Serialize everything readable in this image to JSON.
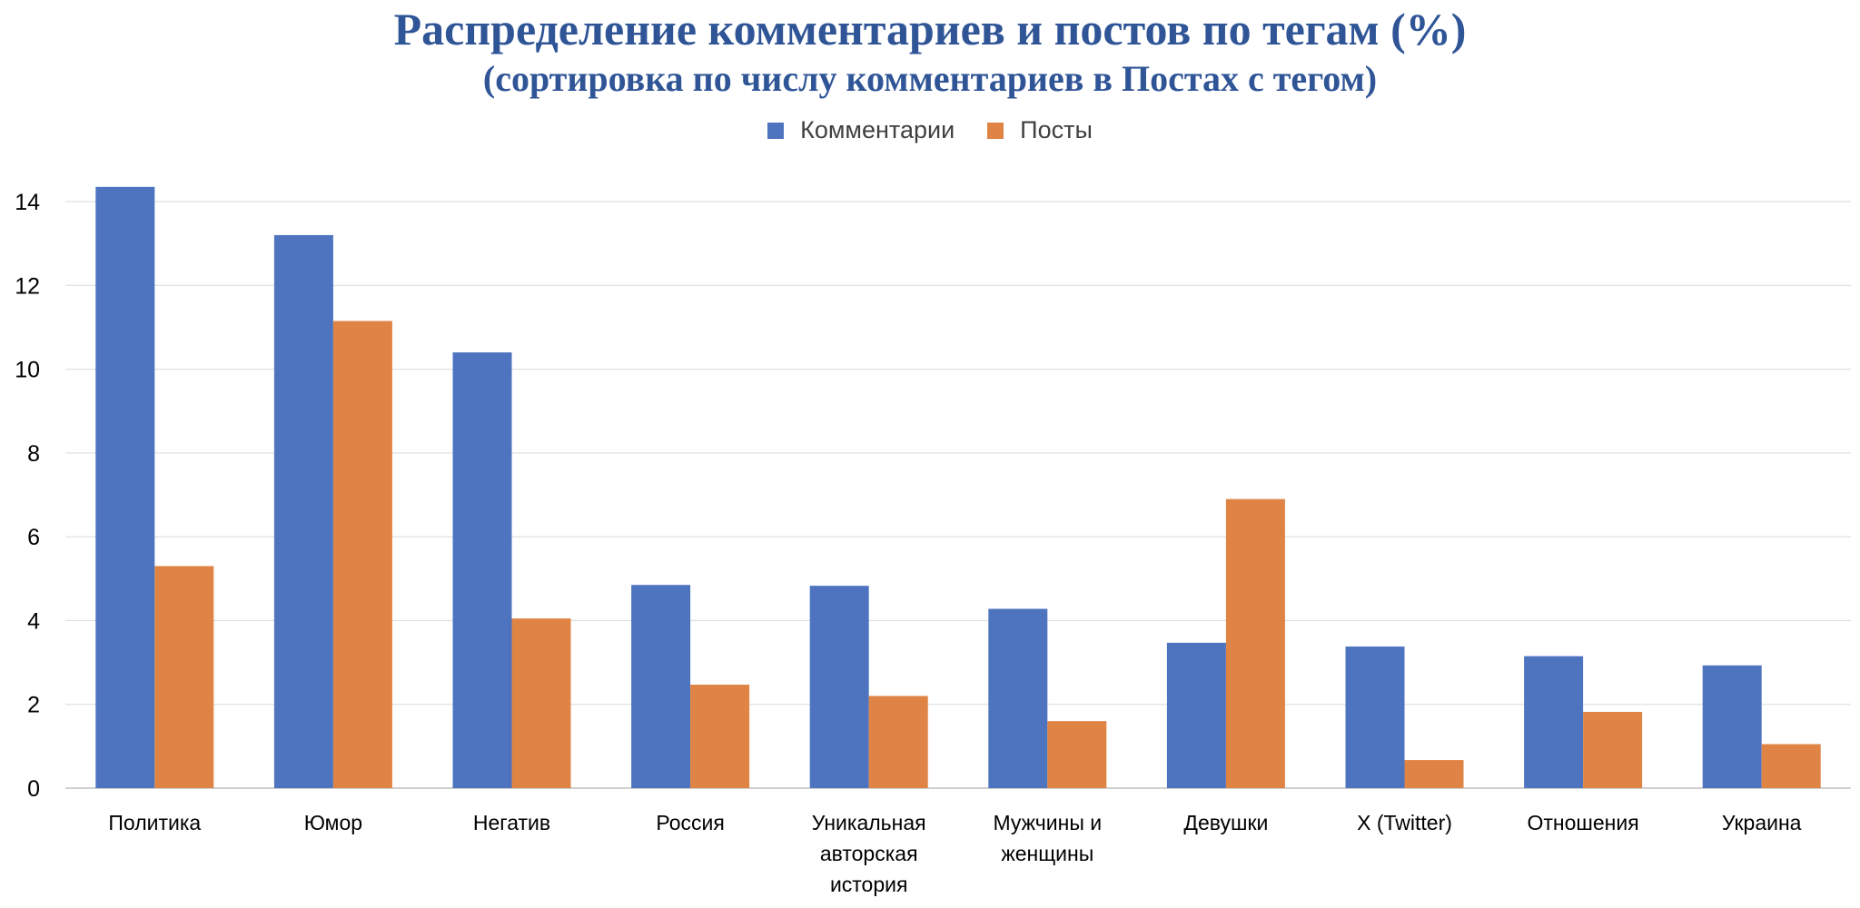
{
  "chart_data": {
    "type": "bar",
    "title": "Распределение комментариев и постов по тегам (%)",
    "subtitle": "(сортировка по числу комментариев в Постах с тегом)",
    "xlabel": "",
    "ylabel": "",
    "ylim": [
      0,
      14
    ],
    "yticks": [
      "0",
      "2",
      "4",
      "6",
      "8",
      "10",
      "12",
      "14"
    ],
    "grid": true,
    "legend_position": "top",
    "categories": [
      "Политика",
      "Юмор",
      "Негатив",
      "Россия",
      "Уникальная авторская история",
      "Мужчины и женщины",
      "Девушки",
      "X (Twitter)",
      "Отношения",
      "Украина"
    ],
    "category_lines": [
      [
        "Политика"
      ],
      [
        "Юмор"
      ],
      [
        "Негатив"
      ],
      [
        "Россия"
      ],
      [
        "Уникальная",
        "авторская",
        "история"
      ],
      [
        "Мужчины и",
        "женщины"
      ],
      [
        "Девушки"
      ],
      [
        "X (Twitter)"
      ],
      [
        "Отношения"
      ],
      [
        "Украина"
      ]
    ],
    "series": [
      {
        "name": "Комментарии",
        "color": "#4e74c0",
        "values": [
          14.35,
          13.2,
          10.4,
          4.85,
          4.83,
          4.28,
          3.47,
          3.38,
          3.15,
          2.93
        ]
      },
      {
        "name": "Посты",
        "color": "#df8444",
        "values": [
          5.3,
          11.15,
          4.05,
          2.47,
          2.2,
          1.6,
          6.9,
          0.67,
          1.82,
          1.05
        ]
      }
    ]
  }
}
